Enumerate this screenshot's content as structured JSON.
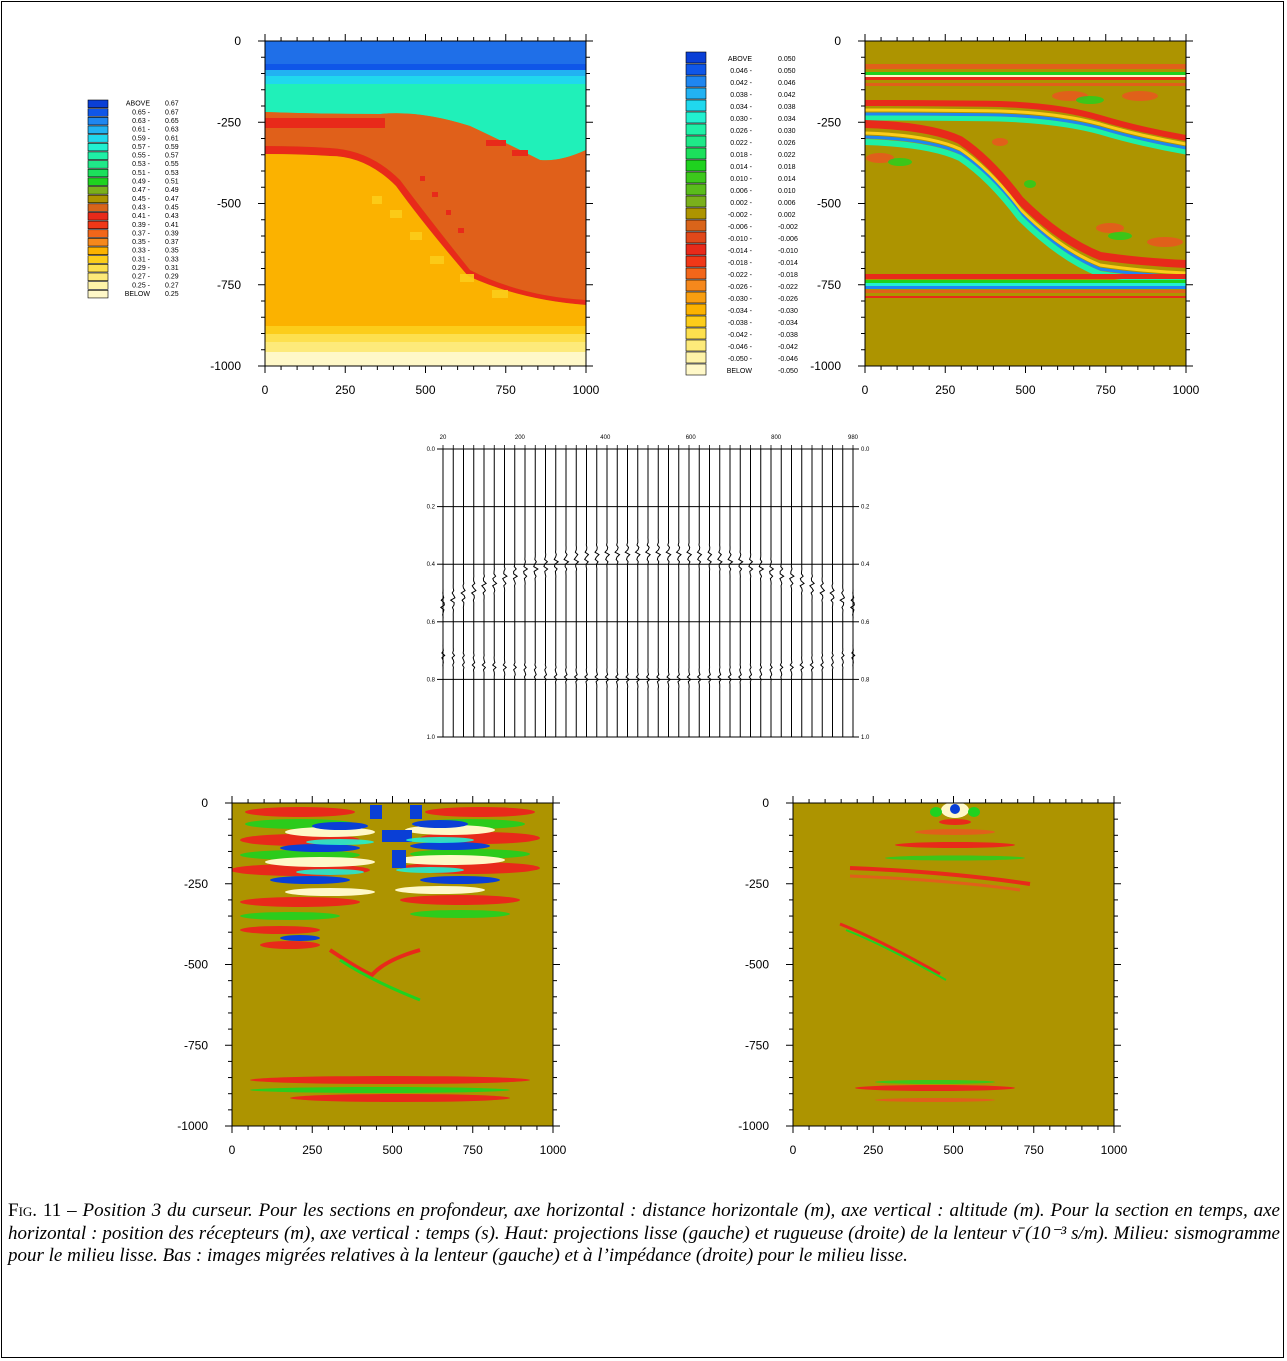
{
  "panels": {
    "top_left": {
      "x_ticks": [
        "0",
        "250",
        "500",
        "750",
        "1000"
      ],
      "y_ticks": [
        "0",
        "-250",
        "-500",
        "-750",
        "-1000"
      ],
      "legend": [
        {
          "lo": "ABOVE",
          "hi": "0.67",
          "color": "#0a3fd6"
        },
        {
          "lo": "0.65 -",
          "hi": "0.67",
          "color": "#0f56e8"
        },
        {
          "lo": "0.63 -",
          "hi": "0.65",
          "color": "#1f86f0"
        },
        {
          "lo": "0.61 -",
          "hi": "0.63",
          "color": "#22b2f2"
        },
        {
          "lo": "0.59 -",
          "hi": "0.61",
          "color": "#20d8ee"
        },
        {
          "lo": "0.57 -",
          "hi": "0.59",
          "color": "#22f0d0"
        },
        {
          "lo": "0.55 -",
          "hi": "0.57",
          "color": "#1ff0a6"
        },
        {
          "lo": "0.53 -",
          "hi": "0.55",
          "color": "#1fe888"
        },
        {
          "lo": "0.51 -",
          "hi": "0.53",
          "color": "#1ce05c"
        },
        {
          "lo": "0.49 -",
          "hi": "0.51",
          "color": "#1fd21f"
        },
        {
          "lo": "0.47 -",
          "hi": "0.49",
          "color": "#7ab01c"
        },
        {
          "lo": "0.45 -",
          "hi": "0.47",
          "color": "#ad9400"
        },
        {
          "lo": "0.43 -",
          "hi": "0.45",
          "color": "#d9641a"
        },
        {
          "lo": "0.41 -",
          "hi": "0.43",
          "color": "#e82a1a"
        },
        {
          "lo": "0.39 -",
          "hi": "0.41",
          "color": "#f03818"
        },
        {
          "lo": "0.37 -",
          "hi": "0.39",
          "color": "#f2661a"
        },
        {
          "lo": "0.35 -",
          "hi": "0.37",
          "color": "#f5881c"
        },
        {
          "lo": "0.33 -",
          "hi": "0.35",
          "color": "#fbb200"
        },
        {
          "lo": "0.31 -",
          "hi": "0.33",
          "color": "#fccd1a"
        },
        {
          "lo": "0.29 -",
          "hi": "0.31",
          "color": "#fde04e"
        },
        {
          "lo": "0.27 -",
          "hi": "0.29",
          "color": "#fdea7a"
        },
        {
          "lo": "0.25 -",
          "hi": "0.27",
          "color": "#fef3a8"
        },
        {
          "lo": "BELOW",
          "hi": "0.25",
          "color": "#fff8c8"
        }
      ]
    },
    "top_right": {
      "x_ticks": [
        "0",
        "250",
        "500",
        "750",
        "1000"
      ],
      "y_ticks": [
        "0",
        "-250",
        "-500",
        "-750",
        "-1000"
      ],
      "legend": [
        {
          "lo": "ABOVE",
          "hi": "0.050",
          "color": "#0a3fd6"
        },
        {
          "lo": "0.046 -",
          "hi": "0.050",
          "color": "#0f56e8"
        },
        {
          "lo": "0.042 -",
          "hi": "0.046",
          "color": "#1f86f0"
        },
        {
          "lo": "0.038 -",
          "hi": "0.042",
          "color": "#22b2f2"
        },
        {
          "lo": "0.034 -",
          "hi": "0.038",
          "color": "#20d8ee"
        },
        {
          "lo": "0.030 -",
          "hi": "0.034",
          "color": "#22f0d0"
        },
        {
          "lo": "0.026 -",
          "hi": "0.030",
          "color": "#1ff0a6"
        },
        {
          "lo": "0.022 -",
          "hi": "0.026",
          "color": "#1fe888"
        },
        {
          "lo": "0.018 -",
          "hi": "0.022",
          "color": "#1ce05c"
        },
        {
          "lo": "0.014 -",
          "hi": "0.018",
          "color": "#1fd21f"
        },
        {
          "lo": "0.010 -",
          "hi": "0.014",
          "color": "#3cc81c"
        },
        {
          "lo": "0.006 -",
          "hi": "0.010",
          "color": "#5abc1c"
        },
        {
          "lo": "0.002 -",
          "hi": "0.006",
          "color": "#7ab01c"
        },
        {
          "lo": "-0.002 -",
          "hi": "0.002",
          "color": "#ad9400"
        },
        {
          "lo": "-0.006 -",
          "hi": "-0.002",
          "color": "#d9641a"
        },
        {
          "lo": "-0.010 -",
          "hi": "-0.006",
          "color": "#e0481a"
        },
        {
          "lo": "-0.014 -",
          "hi": "-0.010",
          "color": "#e82a1a"
        },
        {
          "lo": "-0.018 -",
          "hi": "-0.014",
          "color": "#f03818"
        },
        {
          "lo": "-0.022 -",
          "hi": "-0.018",
          "color": "#f2661a"
        },
        {
          "lo": "-0.026 -",
          "hi": "-0.022",
          "color": "#f5881c"
        },
        {
          "lo": "-0.030 -",
          "hi": "-0.026",
          "color": "#f89e10"
        },
        {
          "lo": "-0.034 -",
          "hi": "-0.030",
          "color": "#fbb200"
        },
        {
          "lo": "-0.038 -",
          "hi": "-0.034",
          "color": "#fccd1a"
        },
        {
          "lo": "-0.042 -",
          "hi": "-0.038",
          "color": "#fde04e"
        },
        {
          "lo": "-0.046 -",
          "hi": "-0.042",
          "color": "#fdea7a"
        },
        {
          "lo": "-0.050 -",
          "hi": "-0.046",
          "color": "#fef3a8"
        },
        {
          "lo": "BELOW",
          "hi": "-0.050",
          "color": "#fff8c8"
        }
      ]
    },
    "seismogram": {
      "x_ticks": [
        "20",
        "200",
        "400",
        "600",
        "800",
        "980"
      ],
      "y_ticks": [
        "0.0",
        "0.2",
        "0.4",
        "0.6",
        "0.8",
        "1.0"
      ],
      "trace_count": 41
    },
    "bottom_left": {
      "x_ticks": [
        "0",
        "250",
        "500",
        "750",
        "1000"
      ],
      "y_ticks": [
        "0",
        "-250",
        "-500",
        "-750",
        "-1000"
      ]
    },
    "bottom_right": {
      "x_ticks": [
        "0",
        "250",
        "500",
        "750",
        "1000"
      ],
      "y_ticks": [
        "0",
        "-250",
        "-500",
        "-750",
        "-1000"
      ]
    }
  },
  "colors": {
    "background_olive": "#ad9400",
    "orange": "#e0601a",
    "red": "#e82a1a",
    "green": "#1fd21f",
    "cyan": "#22f0d0",
    "blue": "#0a3fd6",
    "yellow": "#fbb200",
    "cream": "#fff8c8"
  },
  "caption": {
    "label": "Fig. 11 –",
    "text": "Position 3 du curseur. Pour les sections en profondeur, axe horizontal : distance horizontale (m), axe vertical : altitude (m). Pour la section en temps, axe horizontal : position des récepteurs (m), axe vertical : temps (s). Haut: projections lisse (gauche) et rugueuse (droite) de la lenteur ν̄ (10⁻³ s/m). Milieu: sismogramme pour le milieu lisse. Bas : images migrées relatives à la lenteur (gauche) et à l’impédance (droite) pour le milieu lisse."
  }
}
